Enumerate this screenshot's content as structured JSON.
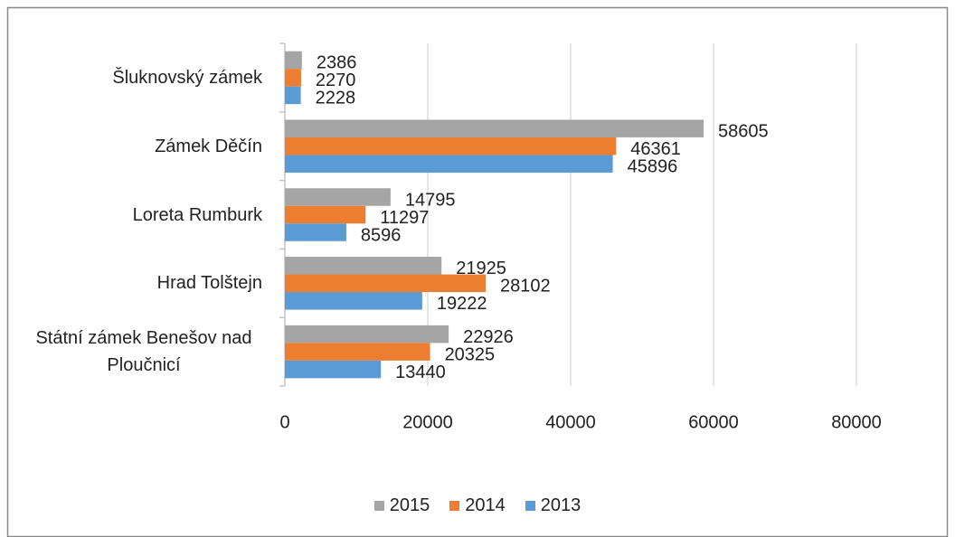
{
  "chart_data": {
    "type": "bar",
    "orientation": "horizontal",
    "categories": [
      "Šluknovský zámek",
      "Zámek Děčín",
      "Loreta Rumburk",
      "Hrad Tolštejn",
      "Státní zámek Benešov nad Ploučnicí"
    ],
    "series": [
      {
        "name": "2015",
        "color": "#a5a5a5",
        "values": [
          2386,
          58605,
          14795,
          21925,
          22926
        ]
      },
      {
        "name": "2014",
        "color": "#ed7d31",
        "values": [
          2270,
          46361,
          11297,
          28102,
          20325
        ]
      },
      {
        "name": "2013",
        "color": "#5b9bd5",
        "values": [
          2228,
          45896,
          8596,
          19222,
          13440
        ]
      }
    ],
    "xlim": [
      0,
      80000
    ],
    "xticks": [
      0,
      20000,
      40000,
      60000,
      80000
    ],
    "grid": true,
    "legend": "bottom"
  }
}
